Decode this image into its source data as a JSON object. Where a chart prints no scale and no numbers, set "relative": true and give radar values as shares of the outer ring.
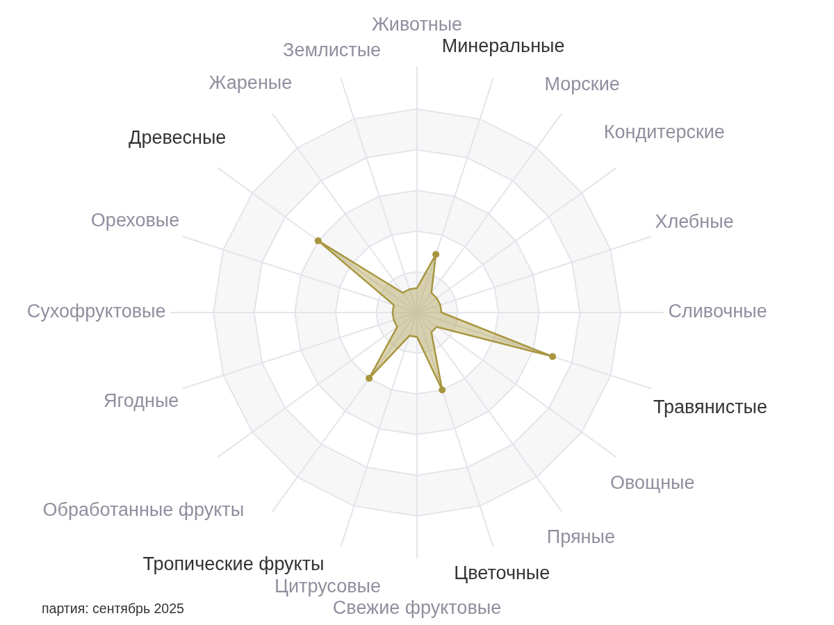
{
  "chart_data": {
    "type": "radar",
    "categories": [
      "Животные",
      "Минеральные",
      "Морские",
      "Кондитерские",
      "Хлебные",
      "Сливочные",
      "Травянистые",
      "Овощные",
      "Пряные",
      "Цветочные",
      "Свежие фруктовые",
      "Цитрусовые",
      "Тропические фрукты",
      "Обработанные фрукты",
      "Ягодные",
      "Сухофруктовые",
      "Ореховые",
      "Древесные",
      "Жареные",
      "Землистые"
    ],
    "series": [
      {
        "color": "#a8963f",
        "values": [
          0.12,
          0.3,
          0.12,
          0.12,
          0.12,
          0.12,
          0.7,
          0.12,
          0.12,
          0.4,
          0.12,
          0.12,
          0.4,
          0.12,
          0.12,
          0.12,
          0.12,
          0.6,
          0.12,
          0.12
        ]
      }
    ],
    "relative": true,
    "grid": true,
    "marker": "circle",
    "annotations": [
      "партия: сентябрь 2025"
    ]
  }
}
